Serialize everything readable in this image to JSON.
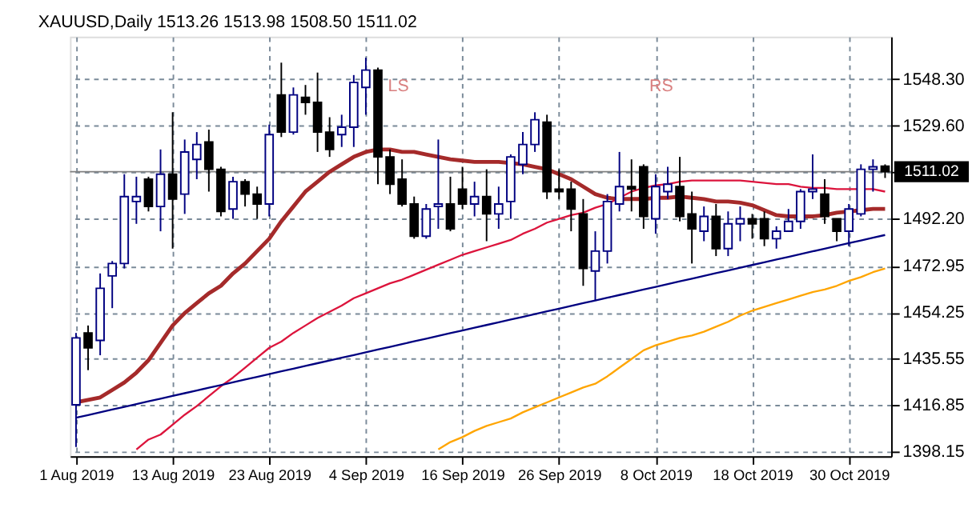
{
  "chart_data": {
    "type": "candlestick",
    "title": "XAUUSD,Daily  1513.26 1513.98 1508.50 1511.02",
    "categories": [
      "1 Aug 2019",
      null,
      null,
      null,
      null,
      null,
      null,
      null,
      "13 Aug 2019",
      null,
      null,
      null,
      null,
      null,
      null,
      null,
      "23 Aug 2019",
      null,
      null,
      null,
      null,
      null,
      null,
      null,
      "4 Sep 2019",
      null,
      null,
      null,
      null,
      null,
      null,
      null,
      "16 Sep 2019",
      null,
      null,
      null,
      null,
      null,
      null,
      null,
      "26 Sep 2019",
      null,
      null,
      null,
      null,
      null,
      null,
      null,
      "8 Oct 2019",
      null,
      null,
      null,
      null,
      null,
      null,
      null,
      "18 Oct 2019",
      null,
      null,
      null,
      null,
      null,
      null,
      null,
      "30 Oct 2019",
      null,
      null,
      null
    ],
    "ohlc": [
      [
        1417,
        1446,
        1400,
        1444
      ],
      [
        1446,
        1449,
        1431,
        1440
      ],
      [
        1443,
        1470,
        1437,
        1464
      ],
      [
        1469,
        1475,
        1456,
        1474
      ],
      [
        1474,
        1510,
        1472,
        1501
      ],
      [
        1499,
        1509,
        1490,
        1501
      ],
      [
        1508,
        1509,
        1495,
        1497
      ],
      [
        1497,
        1520,
        1487,
        1510
      ],
      [
        1510,
        1535,
        1480,
        1500
      ],
      [
        1502,
        1524,
        1494,
        1519
      ],
      [
        1516,
        1527,
        1508,
        1522
      ],
      [
        1523,
        1528,
        1503,
        1512
      ],
      [
        1512,
        1513,
        1493,
        1495
      ],
      [
        1496,
        1509,
        1492,
        1507
      ],
      [
        1507,
        1508,
        1497,
        1502
      ],
      [
        1502,
        1505,
        1492,
        1498
      ],
      [
        1498,
        1530,
        1493,
        1526
      ],
      [
        1542,
        1555,
        1525,
        1527
      ],
      [
        1527,
        1545,
        1526,
        1542
      ],
      [
        1541,
        1546,
        1534,
        1539
      ],
      [
        1539,
        1551,
        1519,
        1527
      ],
      [
        1527,
        1533,
        1517,
        1520
      ],
      [
        1526,
        1534,
        1521,
        1529
      ],
      [
        1529,
        1550,
        1521,
        1547
      ],
      [
        1545,
        1557,
        1534,
        1552
      ],
      [
        1552,
        1553,
        1506,
        1517
      ],
      [
        1517,
        1520,
        1502,
        1506
      ],
      [
        1508,
        1516,
        1497,
        1498
      ],
      [
        1498,
        1501,
        1484,
        1485
      ],
      [
        1485,
        1498,
        1484,
        1496
      ],
      [
        1497,
        1524,
        1488,
        1498
      ],
      [
        1498,
        1509,
        1487,
        1488
      ],
      [
        1504,
        1513,
        1496,
        1498
      ],
      [
        1498,
        1507,
        1493,
        1501
      ],
      [
        1501,
        1512,
        1483,
        1494
      ],
      [
        1494,
        1505,
        1488,
        1498
      ],
      [
        1499,
        1518,
        1492,
        1517
      ],
      [
        1514,
        1527,
        1510,
        1522
      ],
      [
        1522,
        1535,
        1519,
        1532
      ],
      [
        1531,
        1534,
        1500,
        1503
      ],
      [
        1504,
        1512,
        1500,
        1503
      ],
      [
        1504,
        1507,
        1487,
        1496
      ],
      [
        1494,
        1500,
        1465,
        1472
      ],
      [
        1471,
        1487,
        1459,
        1479
      ],
      [
        1479,
        1502,
        1474,
        1499
      ],
      [
        1498,
        1519,
        1495,
        1505
      ],
      [
        1505,
        1516,
        1495,
        1504
      ],
      [
        1513,
        1514,
        1488,
        1493
      ],
      [
        1492,
        1510,
        1486,
        1505
      ],
      [
        1503,
        1513,
        1500,
        1506
      ],
      [
        1505,
        1517,
        1491,
        1493
      ],
      [
        1494,
        1503,
        1474,
        1488
      ],
      [
        1487,
        1497,
        1483,
        1493
      ],
      [
        1493,
        1498,
        1477,
        1480
      ],
      [
        1480,
        1495,
        1477,
        1490
      ],
      [
        1490,
        1497,
        1483,
        1492
      ],
      [
        1492,
        1494,
        1484,
        1490
      ],
      [
        1492,
        1495,
        1481,
        1484
      ],
      [
        1484,
        1489,
        1480,
        1487
      ],
      [
        1487,
        1496,
        1487,
        1491
      ],
      [
        1491,
        1504,
        1488,
        1503
      ],
      [
        1503,
        1518,
        1500,
        1504
      ],
      [
        1502,
        1508,
        1490,
        1493
      ],
      [
        1492,
        1492,
        1483,
        1487
      ],
      [
        1487,
        1498,
        1481,
        1496
      ],
      [
        1494,
        1514,
        1493,
        1512
      ],
      [
        1512,
        1516,
        1503,
        1513
      ],
      [
        1513.26,
        1513.98,
        1508.5,
        1511.02
      ]
    ],
    "colors": [
      "#000080",
      "#000000",
      "#000080",
      "#000080",
      "#000080",
      "#000080",
      "#000000",
      "#000080",
      "#000000",
      "#000080",
      "#000080",
      "#000000",
      "#000000",
      "#000080",
      "#000000",
      "#000000",
      "#000080",
      "#000000",
      "#000080",
      "#000000",
      "#000000",
      "#000000",
      "#000080",
      "#000080",
      "#000080",
      "#000000",
      "#000000",
      "#000000",
      "#000000",
      "#000080",
      "#000080",
      "#000000",
      "#000000",
      "#000080",
      "#000000",
      "#000080",
      "#000080",
      "#000080",
      "#000080",
      "#000000",
      "#000000",
      "#000000",
      "#000000",
      "#000080",
      "#000080",
      "#000080",
      "#000000",
      "#000000",
      "#000080",
      "#000080",
      "#000000",
      "#000000",
      "#000080",
      "#000000",
      "#000080",
      "#000080",
      "#000000",
      "#000000",
      "#000080",
      "#000080",
      "#000080",
      "#000080",
      "#000000",
      "#000000",
      "#000080",
      "#000080",
      "#000080",
      "#000000"
    ],
    "series": [
      {
        "type": "line",
        "color": "#a52a2a",
        "values": [
          1418,
          1419,
          1420,
          1423,
          1426,
          1430,
          1435,
          1442,
          1449,
          1454,
          1458,
          1462,
          1465,
          1470,
          1474,
          1479,
          1484,
          1491,
          1497,
          1503,
          1507,
          1511,
          1514,
          1517,
          1519,
          1520,
          1520,
          1519,
          1519,
          1518,
          1517,
          1516,
          1515.5,
          1515,
          1515,
          1515,
          1514.5,
          1514,
          1513,
          1512,
          1510,
          1508,
          1505,
          1502,
          1500.5,
          1500,
          1500,
          1500,
          1500.5,
          1500.5,
          1501,
          1500.5,
          1500,
          1499,
          1499,
          1498.5,
          1497.5,
          1495.5,
          1493.5,
          1493,
          1493,
          1493,
          1493.5,
          1494.5,
          1495,
          1495.5,
          1496,
          1496
        ]
      },
      {
        "type": "line",
        "color": "#dc143c",
        "values": [
          null,
          null,
          null,
          null,
          null,
          1399,
          1403,
          1405,
          1409,
          1413,
          1416.5,
          1420.5,
          1424.5,
          1428,
          1432,
          1436,
          1440,
          1442.5,
          1446,
          1449,
          1452,
          1454.5,
          1457,
          1460,
          1462,
          1464,
          1466,
          1467.5,
          1469.5,
          1471.5,
          1473.5,
          1475.5,
          1477.5,
          1479,
          1480.5,
          1482,
          1483.5,
          1486,
          1488,
          1490.5,
          1492,
          1493.5,
          1494.5,
          1496.5,
          1498,
          1500.5,
          1503,
          1504.5,
          1505.5,
          1506,
          1507,
          1507.5,
          1507.5,
          1507.5,
          1507.5,
          1507.5,
          1507,
          1506.5,
          1506,
          1506,
          1505,
          1504.5,
          1504.5,
          1504,
          1504,
          1504,
          1504,
          1503
        ]
      },
      {
        "type": "line",
        "color": "#ffa500",
        "values": [
          null,
          null,
          null,
          null,
          null,
          null,
          null,
          null,
          null,
          null,
          null,
          null,
          null,
          null,
          null,
          null,
          null,
          null,
          null,
          null,
          null,
          null,
          null,
          null,
          null,
          null,
          null,
          null,
          null,
          null,
          1399,
          1402,
          1404,
          1406.5,
          1408.5,
          1410,
          1411.5,
          1414,
          1416,
          1418,
          1420,
          1422,
          1424,
          1425.5,
          1428.5,
          1432,
          1435.5,
          1439,
          1441,
          1442.5,
          1444,
          1445,
          1446.5,
          1448.5,
          1450.5,
          1453,
          1455,
          1456.5,
          1458,
          1459.5,
          1461,
          1462.5,
          1463.5,
          1465,
          1467,
          1468.5,
          1470.5,
          1472
        ]
      },
      {
        "type": "line",
        "color": "#000080",
        "values": [
          1411.8,
          1412.9,
          1414.0,
          1415.1,
          1416.2,
          1417.3,
          1418.4,
          1419.5,
          1420.6,
          1421.7,
          1422.8,
          1423.9,
          1425.0,
          1426.1,
          1427.2,
          1428.3,
          1429.4,
          1430.5,
          1431.6,
          1432.7,
          1433.8,
          1434.9,
          1436.0,
          1437.1,
          1438.2,
          1439.3,
          1440.4,
          1441.5,
          1442.6,
          1443.7,
          1444.8,
          1445.9,
          1447.0,
          1448.1,
          1449.2,
          1450.3,
          1451.4,
          1452.5,
          1453.6,
          1454.7,
          1455.8,
          1456.9,
          1458.0,
          1459.1,
          1460.2,
          1461.3,
          1462.4,
          1463.5,
          1464.6,
          1465.7,
          1466.8,
          1467.9,
          1469.0,
          1470.1,
          1471.2,
          1472.3,
          1473.4,
          1474.5,
          1475.6,
          1476.7,
          1477.8,
          1478.9,
          1480.0,
          1481.1,
          1482.2,
          1483.3,
          1484.4,
          1485.5
        ]
      }
    ],
    "ylim": [
      1396.3,
      1565.5
    ],
    "yticks": [
      1398.15,
      1416.85,
      1435.55,
      1454.25,
      1472.95,
      {
        "value": 1492.2,
        "label": "1492.20"
      },
      {
        "value": 1510.9,
        "label": null
      },
      {
        "value": 1529.6,
        "label": "1529.60"
      },
      {
        "value": 1548.3,
        "label": "1548.30"
      }
    ],
    "ref_lines": [
      {
        "axis": "y",
        "value": 1511.02,
        "label": "1511.02",
        "color": "#808080"
      }
    ],
    "annotations": [
      "LS",
      "RS"
    ],
    "grid": true
  }
}
